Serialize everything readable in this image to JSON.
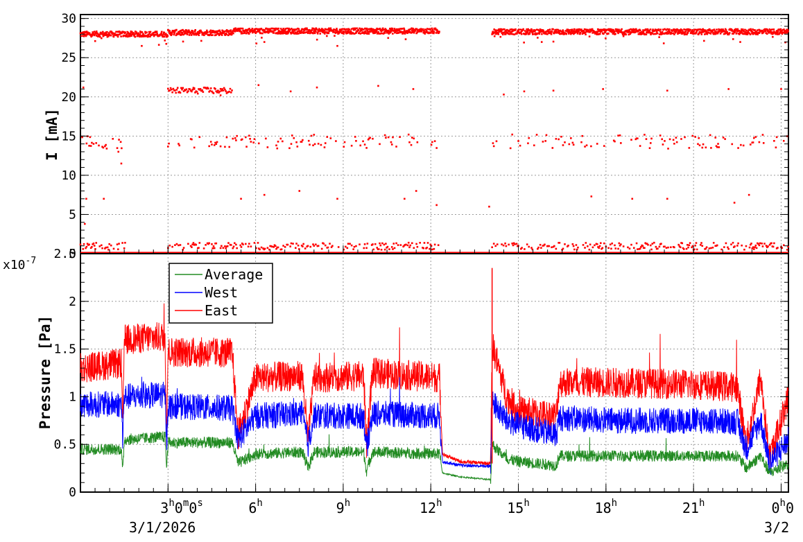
{
  "chart_data": [
    {
      "type": "scatter",
      "panel": "top",
      "ylabel": "I [mA]",
      "xlabel": "",
      "ylim": [
        0,
        30.5
      ],
      "xlim_hours": [
        0,
        24.25
      ],
      "y_ticks": [
        0,
        5,
        10,
        15,
        20,
        25,
        30
      ],
      "y_tick_labels": [
        "0",
        "5",
        "10",
        "15",
        "20",
        "25",
        "30"
      ],
      "grid": true,
      "series": [
        {
          "color": "#ff0000",
          "segments": [
            {
              "x_start": 0.0,
              "x_end": 3.0,
              "y": 28.0
            },
            {
              "x_start": 3.0,
              "x_end": 5.2,
              "y": 28.2
            },
            {
              "x_start": 5.2,
              "x_end": 12.3,
              "y": 28.4
            },
            {
              "x_start": 14.1,
              "x_end": 24.25,
              "y": 28.3
            }
          ],
          "clusters_y": [
            0.5,
            14.3,
            20.8
          ],
          "sparse_points": [
            {
              "x": 1.3,
              "y": 13.0
            },
            {
              "x": 1.4,
              "y": 11.5
            },
            {
              "x": 3.9,
              "y": 21.0
            },
            {
              "x": 4.8,
              "y": 20.2
            },
            {
              "x": 0.1,
              "y": 21.2
            },
            {
              "x": 0.2,
              "y": 7.0
            },
            {
              "x": 0.8,
              "y": 7.0
            },
            {
              "x": 0.15,
              "y": 3.8
            },
            {
              "x": 5.5,
              "y": 7.0
            },
            {
              "x": 6.3,
              "y": 7.5
            },
            {
              "x": 7.5,
              "y": 8.0
            },
            {
              "x": 8.8,
              "y": 7.0
            },
            {
              "x": 11.5,
              "y": 8.0
            },
            {
              "x": 11.1,
              "y": 7.0
            },
            {
              "x": 12.2,
              "y": 6.2
            },
            {
              "x": 14.0,
              "y": 6.0
            },
            {
              "x": 17.5,
              "y": 7.3
            },
            {
              "x": 18.9,
              "y": 7.0
            },
            {
              "x": 20.1,
              "y": 7.0
            },
            {
              "x": 22.4,
              "y": 6.5
            },
            {
              "x": 22.9,
              "y": 7.5
            },
            {
              "x": 6.1,
              "y": 21.5
            },
            {
              "x": 7.2,
              "y": 20.7
            },
            {
              "x": 8.1,
              "y": 21.2
            },
            {
              "x": 10.2,
              "y": 21.4
            },
            {
              "x": 11.4,
              "y": 21.0
            },
            {
              "x": 14.5,
              "y": 20.3
            },
            {
              "x": 15.2,
              "y": 20.7
            },
            {
              "x": 16.2,
              "y": 20.8
            },
            {
              "x": 17.9,
              "y": 21.0
            },
            {
              "x": 20.1,
              "y": 20.8
            },
            {
              "x": 22.2,
              "y": 21.0
            },
            {
              "x": 24.0,
              "y": 21.0
            },
            {
              "x": 2.1,
              "y": 26.5
            },
            {
              "x": 6.3,
              "y": 27.0
            },
            {
              "x": 8.8,
              "y": 26.5
            },
            {
              "x": 15.8,
              "y": 27.0
            },
            {
              "x": 22.6,
              "y": 27.0
            }
          ]
        }
      ]
    },
    {
      "type": "line",
      "panel": "bottom",
      "ylabel": "Pressure [Pa]",
      "xlabel": "",
      "y_multiplier": "x10",
      "y_exponent": "-7",
      "ylim": [
        0,
        2.5
      ],
      "xlim_hours": [
        0,
        24.25
      ],
      "y_ticks": [
        0,
        0.5,
        1,
        1.5,
        2,
        2.5
      ],
      "y_tick_labels": [
        "0",
        "0.5",
        "1",
        "1.5",
        "2",
        "2.5"
      ],
      "grid": true,
      "legend_position": "top-left",
      "series": [
        {
          "name": "Average",
          "color": "#228b22",
          "x_hours": [
            0,
            1.4,
            1.45,
            1.5,
            2.9,
            2.95,
            3.0,
            5.2,
            5.4,
            6.0,
            7.6,
            7.8,
            8.0,
            9.7,
            9.8,
            10.0,
            12.3,
            12.4,
            13.0,
            14.05,
            14.1,
            14.6,
            15.0,
            16.3,
            16.4,
            18.0,
            21.0,
            22.5,
            22.8,
            23.3,
            23.6,
            24.25
          ],
          "values": [
            0.45,
            0.45,
            0.2,
            0.55,
            0.58,
            0.25,
            0.52,
            0.52,
            0.3,
            0.4,
            0.42,
            0.25,
            0.42,
            0.42,
            0.22,
            0.42,
            0.4,
            0.2,
            0.16,
            0.13,
            0.5,
            0.35,
            0.32,
            0.28,
            0.38,
            0.38,
            0.38,
            0.38,
            0.25,
            0.38,
            0.2,
            0.3
          ],
          "noise": 0.06
        },
        {
          "name": "West",
          "color": "#0000ff",
          "x_hours": [
            0,
            1.4,
            1.45,
            1.5,
            2.9,
            2.95,
            3.0,
            5.2,
            5.4,
            6.0,
            7.6,
            7.8,
            8.0,
            9.7,
            9.8,
            10.0,
            12.3,
            12.4,
            13.0,
            14.05,
            14.1,
            14.6,
            15.0,
            16.3,
            16.4,
            18.0,
            21.0,
            22.5,
            22.8,
            23.3,
            23.6,
            24.25
          ],
          "values": [
            0.92,
            0.92,
            0.55,
            1.0,
            1.02,
            0.5,
            0.9,
            0.88,
            0.55,
            0.8,
            0.82,
            0.5,
            0.8,
            0.8,
            0.45,
            0.82,
            0.8,
            0.32,
            0.28,
            0.27,
            0.95,
            0.75,
            0.7,
            0.6,
            0.78,
            0.75,
            0.75,
            0.74,
            0.45,
            0.76,
            0.3,
            0.55
          ],
          "noise": 0.14
        },
        {
          "name": "East",
          "color": "#ff0000",
          "x_hours": [
            0,
            1.4,
            1.45,
            1.5,
            2.9,
            2.95,
            3.0,
            5.2,
            5.4,
            6.0,
            7.6,
            7.8,
            8.0,
            9.7,
            9.8,
            10.0,
            12.3,
            12.4,
            13.0,
            14.05,
            14.1,
            14.6,
            15.0,
            16.3,
            16.4,
            18.0,
            21.0,
            22.5,
            22.8,
            23.3,
            23.6,
            24.25
          ],
          "values": [
            1.3,
            1.35,
            0.6,
            1.6,
            1.63,
            0.6,
            1.47,
            1.46,
            0.6,
            1.2,
            1.22,
            0.55,
            1.2,
            1.22,
            0.5,
            1.25,
            1.2,
            0.4,
            0.32,
            0.3,
            1.55,
            1.0,
            0.85,
            0.8,
            1.15,
            1.15,
            1.13,
            1.1,
            0.5,
            1.2,
            0.35,
            1.0
          ],
          "noise": 0.16
        }
      ]
    }
  ],
  "x_axis": {
    "ticks_hours": [
      3,
      6,
      9,
      12,
      15,
      18,
      21,
      24
    ],
    "tick_base": [
      "3",
      "6",
      "9",
      "12",
      "15",
      "18",
      "21",
      "0"
    ],
    "tick_sup_h": "h",
    "first_tick_rest": [
      "0",
      "m",
      "0",
      "s"
    ],
    "last_tick_rest": "0",
    "date_left": "3/1/2026",
    "date_right": "3/2"
  }
}
